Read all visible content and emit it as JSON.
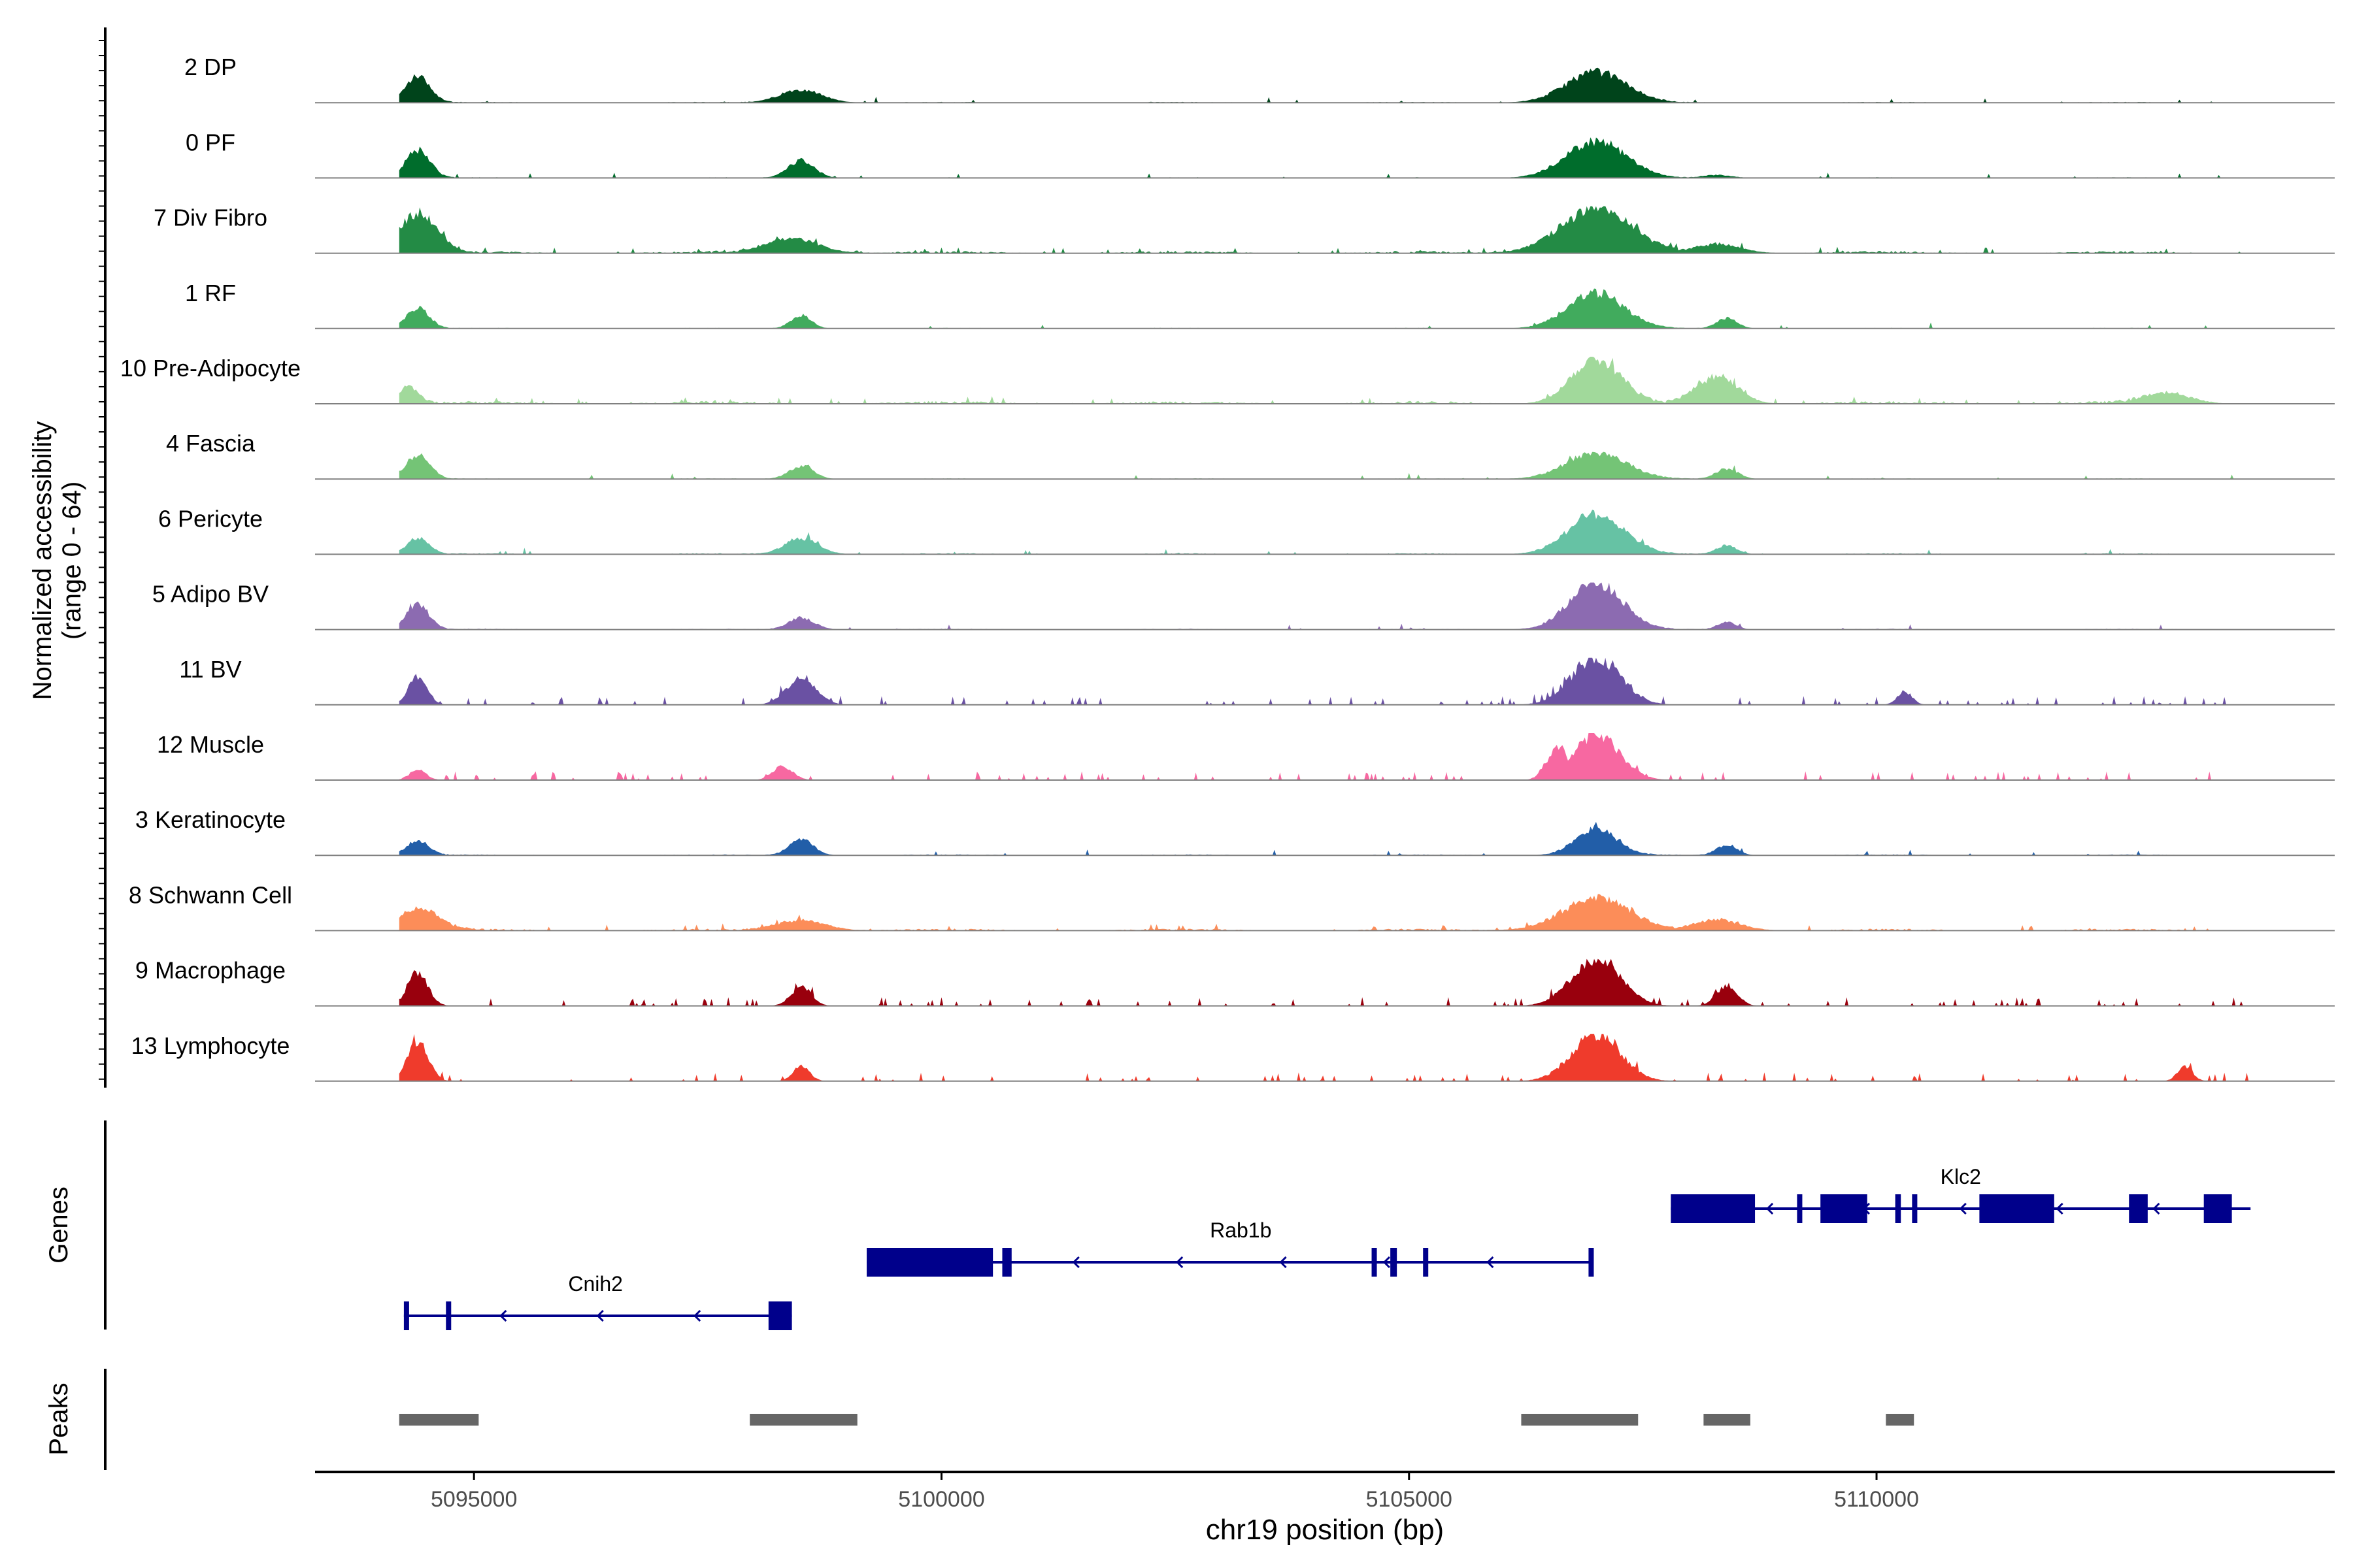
{
  "chart_data": {
    "type": "area",
    "title": "",
    "ylabel_line1": "Normalized accessibility",
    "ylabel_line2": "(range 0 - 64)",
    "xlabel": "chr19 position (bp)",
    "xlim": [
      5093300,
      5114900
    ],
    "x_ticks": [
      5095000,
      5100000,
      5105000,
      5110000
    ],
    "x_tick_labels": [
      "5095000",
      "5100000",
      "5105000",
      "5110000"
    ],
    "y_range": [
      0,
      64
    ],
    "tracks": [
      {
        "name": "2 DP",
        "color": "#00441b",
        "peaks": [
          [
            5094400,
            36,
            130
          ],
          [
            5098500,
            18,
            220
          ],
          [
            5107000,
            42,
            320
          ]
        ],
        "noise": 0.06,
        "sparse": false
      },
      {
        "name": "0 PF",
        "color": "#006d2c",
        "peaks": [
          [
            5094400,
            38,
            130
          ],
          [
            5098500,
            24,
            140
          ],
          [
            5107000,
            50,
            320
          ],
          [
            5108300,
            4,
            150
          ]
        ],
        "noise": 0.05,
        "sparse": false
      },
      {
        "name": "7 Div Fibro",
        "color": "#238b45",
        "peaks": [
          [
            5094400,
            54,
            200
          ],
          [
            5098400,
            20,
            280
          ],
          [
            5107000,
            60,
            380
          ],
          [
            5108300,
            12,
            250
          ]
        ],
        "noise": 0.16,
        "sparse": false
      },
      {
        "name": "1 RF",
        "color": "#41ab5d",
        "peaks": [
          [
            5094400,
            28,
            120
          ],
          [
            5098500,
            18,
            110
          ],
          [
            5107000,
            48,
            300
          ],
          [
            5108400,
            14,
            110
          ]
        ],
        "noise": 0.05,
        "sparse": false
      },
      {
        "name": "10 Pre-Adipocyte",
        "color": "#a1d99b",
        "peaks": [
          [
            5094300,
            22,
            110
          ],
          [
            5107000,
            62,
            260
          ],
          [
            5108300,
            36,
            220
          ],
          [
            5113100,
            14,
            250
          ]
        ],
        "noise": 0.2,
        "sparse": false
      },
      {
        "name": "4 Fascia",
        "color": "#74c476",
        "peaks": [
          [
            5094400,
            32,
            130
          ],
          [
            5098500,
            18,
            130
          ],
          [
            5107000,
            36,
            320
          ],
          [
            5108400,
            14,
            120
          ]
        ],
        "noise": 0.05,
        "sparse": false
      },
      {
        "name": "6 Pericyte",
        "color": "#66c2a4",
        "peaks": [
          [
            5094400,
            22,
            120
          ],
          [
            5098500,
            22,
            180
          ],
          [
            5107000,
            55,
            300
          ],
          [
            5108400,
            12,
            110
          ]
        ],
        "noise": 0.08,
        "sparse": false
      },
      {
        "name": "5 Adipo BV",
        "color": "#8c6bb1",
        "peaks": [
          [
            5094400,
            34,
            120
          ],
          [
            5098500,
            16,
            140
          ],
          [
            5107000,
            64,
            280
          ],
          [
            5108400,
            10,
            100
          ]
        ],
        "noise": 0.06,
        "sparse": false
      },
      {
        "name": "11 BV",
        "color": "#6a51a3",
        "peaks": [
          [
            5094400,
            38,
            100
          ],
          [
            5098500,
            36,
            160
          ],
          [
            5107000,
            64,
            260
          ],
          [
            5110300,
            18,
            80
          ]
        ],
        "noise": 0.22,
        "sparse": true
      },
      {
        "name": "12 Muscle",
        "color": "#f768a1",
        "peaks": [
          [
            5094400,
            14,
            90
          ],
          [
            5098300,
            18,
            110
          ],
          [
            5107000,
            62,
            250
          ],
          [
            5106600,
            44,
            120
          ]
        ],
        "noise": 0.18,
        "sparse": true
      },
      {
        "name": "3 Keratinocyte",
        "color": "#225ea8",
        "peaks": [
          [
            5094400,
            20,
            120
          ],
          [
            5098500,
            22,
            130
          ],
          [
            5107000,
            36,
            220
          ],
          [
            5108400,
            14,
            110
          ]
        ],
        "noise": 0.07,
        "sparse": false
      },
      {
        "name": "8 Schwann Cell",
        "color": "#fc8d59",
        "peaks": [
          [
            5094400,
            30,
            220
          ],
          [
            5098500,
            14,
            260
          ],
          [
            5107000,
            44,
            360
          ],
          [
            5108300,
            14,
            250
          ]
        ],
        "noise": 0.14,
        "sparse": false
      },
      {
        "name": "9 Macrophage",
        "color": "#99000d",
        "peaks": [
          [
            5094400,
            44,
            110
          ],
          [
            5098500,
            26,
            110
          ],
          [
            5107000,
            64,
            260
          ],
          [
            5108400,
            28,
            110
          ]
        ],
        "noise": 0.2,
        "sparse": true
      },
      {
        "name": "13 Lymphocyte",
        "color": "#ef3b2c",
        "peaks": [
          [
            5094400,
            56,
            110
          ],
          [
            5098500,
            20,
            90
          ],
          [
            5107000,
            64,
            260
          ],
          [
            5113300,
            20,
            80
          ]
        ],
        "noise": 0.22,
        "sparse": true
      }
    ],
    "genes_panel_label": "Genes",
    "gene_color": "#00008b",
    "genes": [
      {
        "name": "Cnih2",
        "start": 5094250,
        "end": 5098400,
        "strand": "-",
        "row": 3,
        "exons": [
          [
            5094250,
            5094300
          ],
          [
            5094700,
            5094750
          ],
          [
            5098150,
            5098400
          ]
        ]
      },
      {
        "name": "Rab1b",
        "start": 5099200,
        "end": 5106950,
        "strand": "-",
        "row": 2,
        "exons": [
          [
            5099200,
            5100550
          ],
          [
            5100650,
            5100750
          ],
          [
            5104600,
            5104650
          ],
          [
            5104800,
            5104870
          ],
          [
            5105150,
            5105200
          ],
          [
            5106920,
            5106950
          ]
        ]
      },
      {
        "name": "Klc2",
        "start": 5107800,
        "end": 5114000,
        "strand": "-",
        "row": 1,
        "exons": [
          [
            5107800,
            5108700
          ],
          [
            5109150,
            5109200
          ],
          [
            5109400,
            5109900
          ],
          [
            5110200,
            5110260
          ],
          [
            5110380,
            5110420
          ],
          [
            5111100,
            5111900
          ],
          [
            5112700,
            5112900
          ],
          [
            5113500,
            5113800
          ]
        ]
      }
    ],
    "peaks_panel_label": "Peaks",
    "peak_color": "#666666",
    "peak_regions": [
      [
        5094200,
        5095050
      ],
      [
        5097950,
        5099100
      ],
      [
        5106200,
        5107450
      ],
      [
        5108150,
        5108650
      ],
      [
        5110100,
        5110400
      ]
    ]
  }
}
